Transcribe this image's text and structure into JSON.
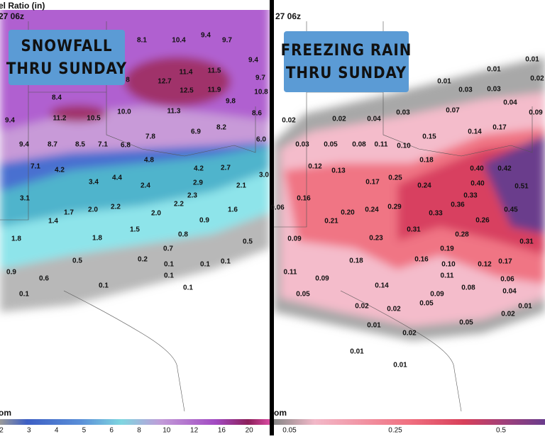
{
  "left_panel": {
    "header": "el Ratio (in)",
    "run": "27 06z",
    "overlay": [
      "SNOWFALL",
      "THRU SUNDAY"
    ],
    "labels": [
      "8.1",
      "10.4",
      "9.4",
      "9.7",
      "9.4",
      "11.4",
      "11.5",
      "8",
      "12.7",
      "9.7",
      "12.5",
      "11.9",
      "10.8",
      "8.4",
      "9.8",
      "11.3",
      "10.0",
      "8.6",
      "9.4",
      "11.2",
      "10.5",
      "6.9",
      "8.2",
      "7.8",
      "6.0",
      "9.4",
      "8.7",
      "8.5",
      "7.1",
      "6.8",
      "4.8",
      "7.1",
      "4.2",
      "4.2",
      "2.7",
      "3.0",
      "4.4",
      "3.4",
      "2.9",
      "2.4",
      "2.1",
      "3.1",
      "2.3",
      "2.2",
      "2.2",
      "1.7",
      "2.0",
      "1.6",
      "2.0",
      "1.4",
      "0.9",
      "1.5",
      "0.8",
      "1.8",
      "1.8",
      "0.5",
      "0.7",
      "0.2",
      "0.5",
      "0.1",
      "0.1",
      "0.1",
      "0.9",
      "0.1",
      "0.6",
      "0.1",
      "0.1",
      "0.1"
    ],
    "footer": "om",
    "colorbar": [
      "2",
      "3",
      "4",
      "5",
      "6",
      "8",
      "10",
      "12",
      "16",
      "20"
    ]
  },
  "right_panel": {
    "run": "27 06z",
    "overlay": [
      "FREEZING RAIN",
      "THRU SUNDAY"
    ],
    "labels": [
      "0.01",
      "0.01",
      "0.01",
      "0.02",
      "0.03",
      "0.03",
      "0.04",
      "0.03",
      "0.07",
      "0.09",
      "0.02",
      "0.02",
      "0.04",
      "0.14",
      "0.17",
      "0.15",
      "0.03",
      "0.05",
      "0.08",
      "0.11",
      "0.10",
      "0.18",
      "0.12",
      "0.13",
      "0.40",
      "0.42",
      "0.25",
      "0.17",
      "0.40",
      "0.51",
      "0.24",
      "0.16",
      "0.33",
      "0.36",
      "0.06",
      "0.24",
      "0.29",
      "0.45",
      "0.20",
      "0.33",
      "0.21",
      "0.26",
      "0.31",
      "0.28",
      "0.09",
      "0.23",
      "0.31",
      "0.19",
      "0.16",
      "0.18",
      "0.10",
      "0.12",
      "0.17",
      "0.11",
      "0.11",
      "0.09",
      "0.06",
      "0.14",
      "0.08",
      "0.05",
      "0.09",
      "0.04",
      "0.05",
      "0.02",
      "0.02",
      "0.01",
      "0.02",
      "0.05",
      "0.01",
      "0.02",
      "0.01",
      "0.01"
    ],
    "footer": "om",
    "colorbar": [
      "0.05",
      "0.25",
      "0.5"
    ]
  }
}
